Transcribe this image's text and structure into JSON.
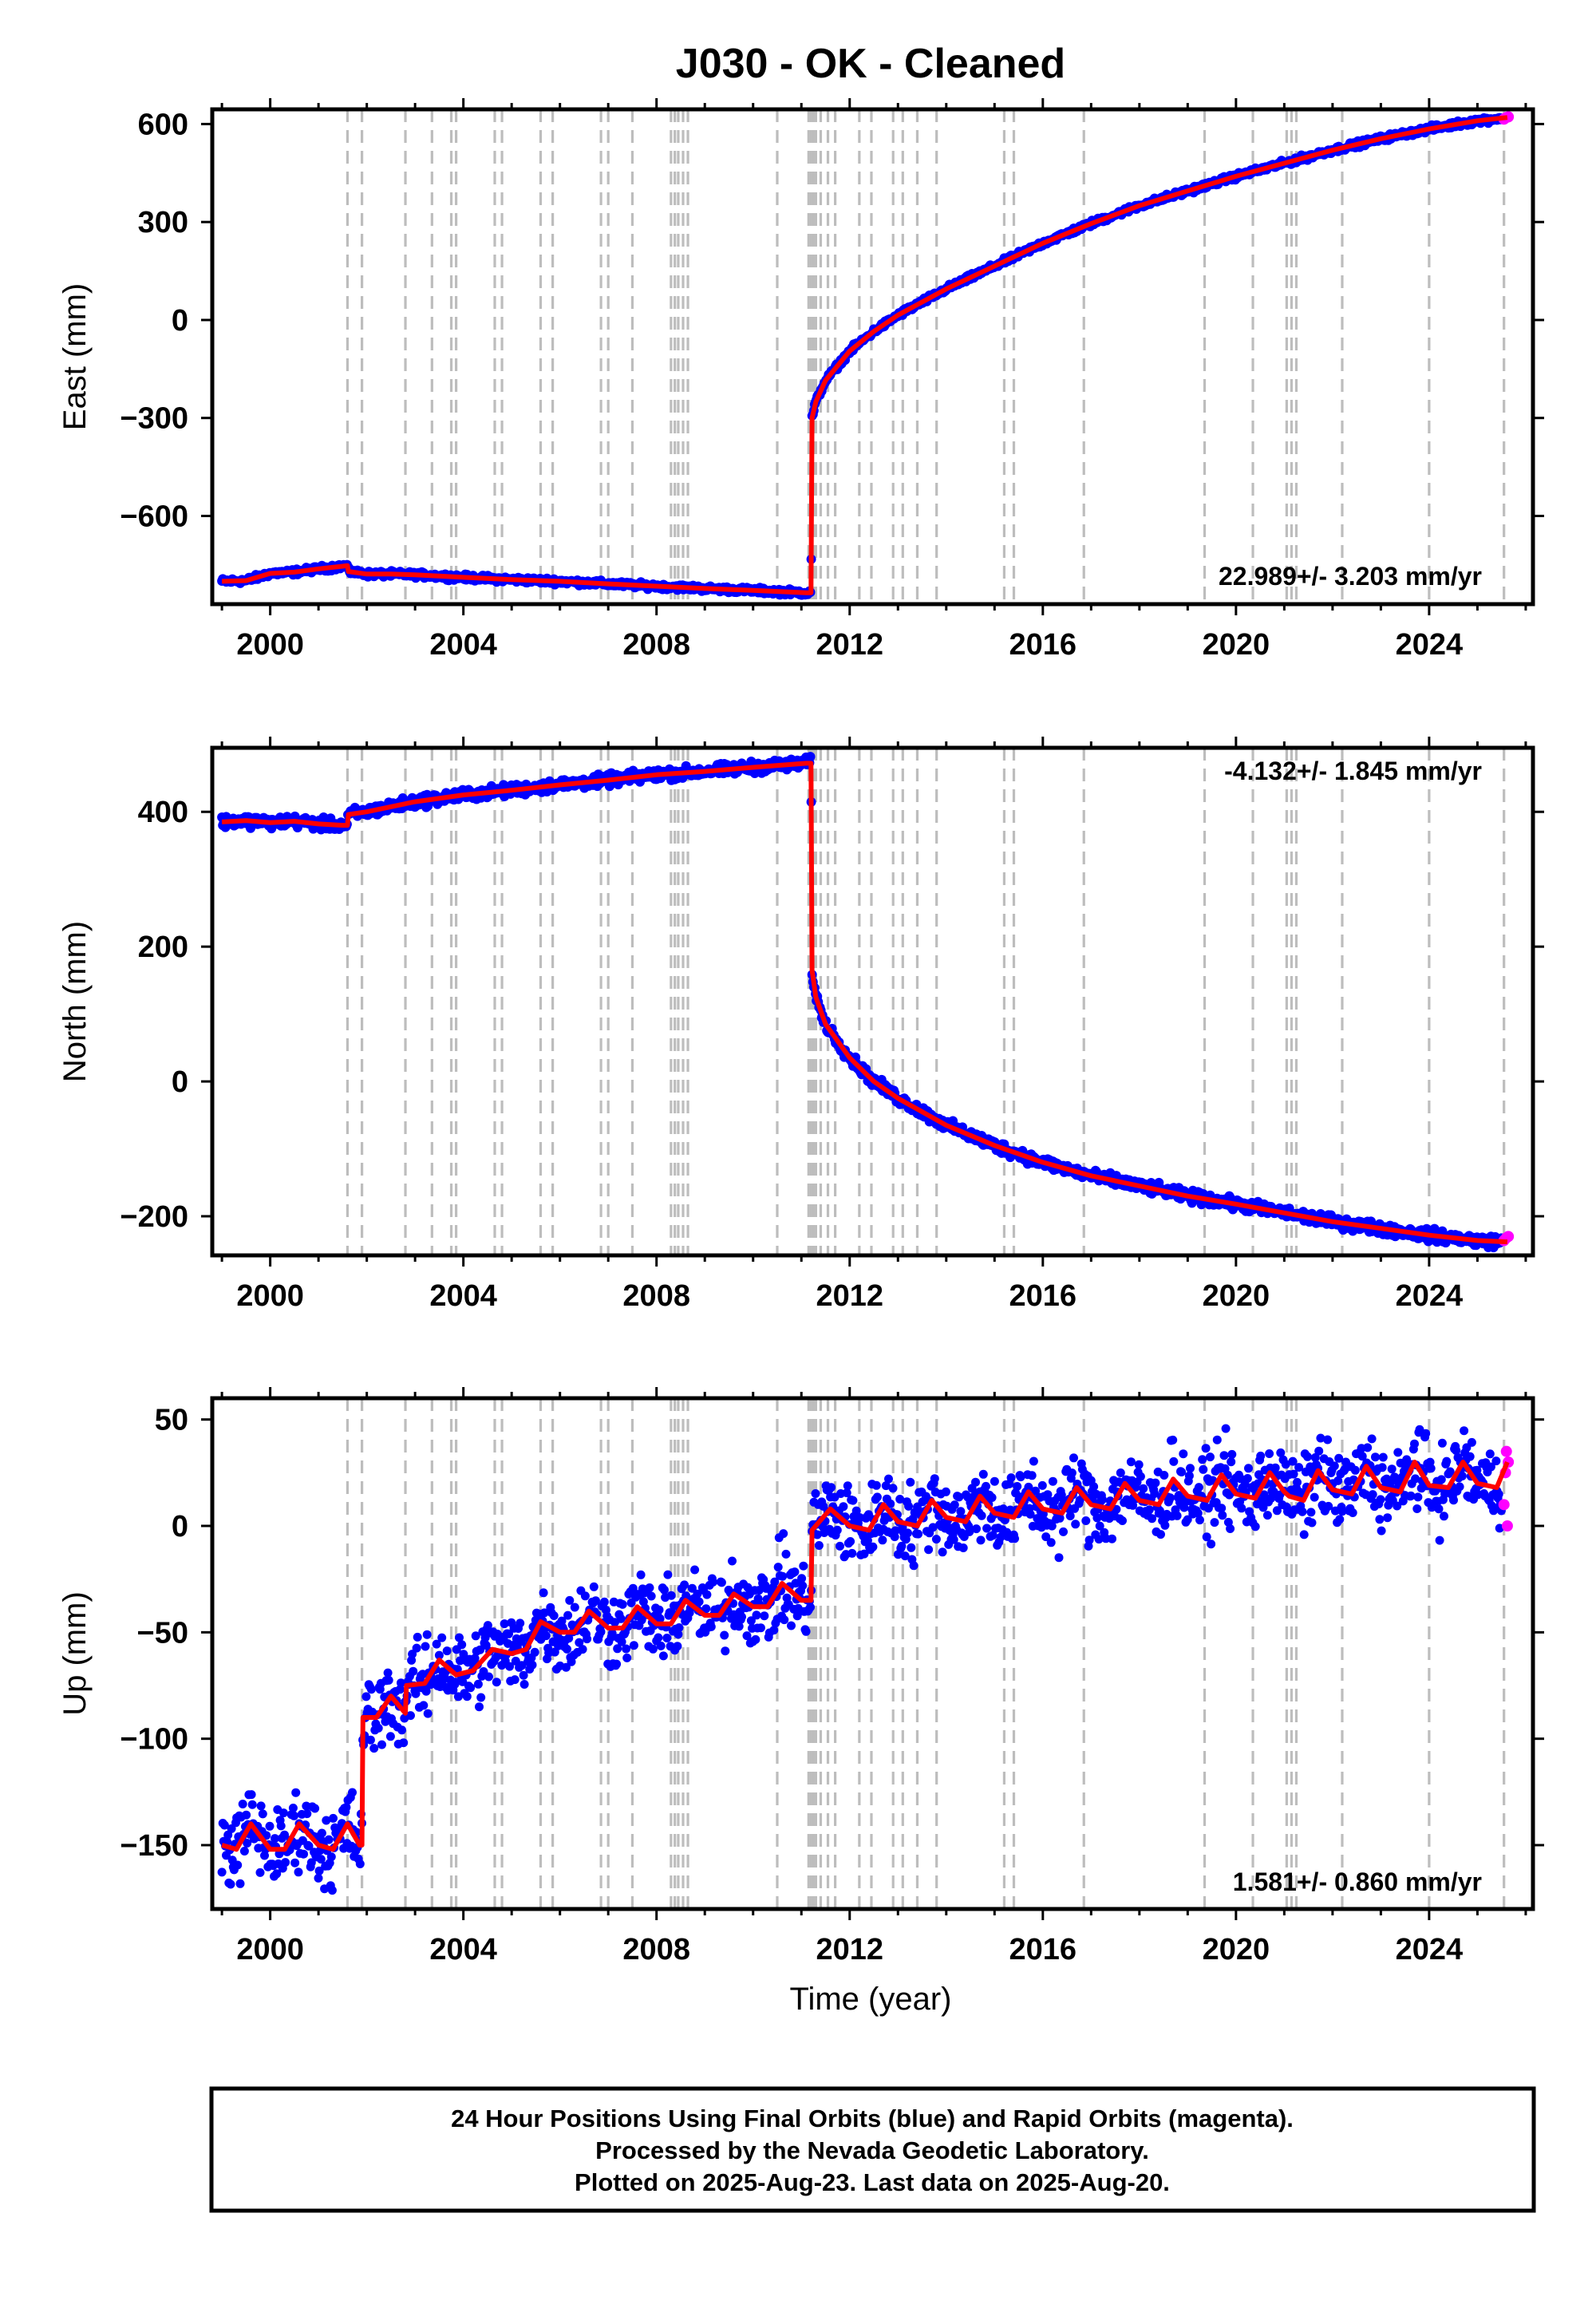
{
  "title": "J030  - OK - Cleaned",
  "x_axis_label": "Time (year)",
  "footer": {
    "line1": "24 Hour Positions Using Final Orbits (blue) and Rapid Orbits (magenta).",
    "line2": "Processed by the Nevada Geodetic Laboratory.",
    "line3": "Plotted on 2025-Aug-23. Last data on 2025-Aug-20."
  },
  "colors": {
    "final": "#0000ff",
    "rapid": "#ff00ff",
    "model": "#ff0000",
    "event_line": "#bdbdbd"
  },
  "chart_data": [
    {
      "type": "scatter",
      "id": "east",
      "ylabel": "East (mm)",
      "rate_label": "22.989+/- 3.203 mm/yr",
      "xlim": [
        1998.8,
        2026.15
      ],
      "ylim": [
        -870,
        645
      ],
      "xticks": [
        2000,
        2004,
        2008,
        2012,
        2016,
        2020,
        2024
      ],
      "yticks": [
        -600,
        -300,
        0,
        300,
        600
      ],
      "event_years": [
        2001.6,
        2001.9,
        2002.8,
        2003.35,
        2003.75,
        2003.85,
        2004.65,
        2004.8,
        2005.6,
        2005.85,
        2006.85,
        2007.0,
        2007.5,
        2008.3,
        2008.38,
        2008.45,
        2008.55,
        2008.65,
        2010.5,
        2011.15,
        2011.2,
        2011.25,
        2011.3,
        2011.4,
        2011.55,
        2011.7,
        2012.2,
        2012.45,
        2012.9,
        2013.1,
        2013.4,
        2013.8,
        2015.2,
        2015.4,
        2016.85,
        2019.35,
        2020.35,
        2021.05,
        2021.15,
        2021.25,
        2022.2,
        2024.0,
        2025.55
      ],
      "series": [
        {
          "name": "model",
          "points": [
            [
              1999.0,
              -800
            ],
            [
              1999.5,
              -798
            ],
            [
              2000.0,
              -776
            ],
            [
              2000.5,
              -772
            ],
            [
              2001.0,
              -762
            ],
            [
              2001.5,
              -754
            ],
            [
              2001.6,
              -752
            ],
            [
              2001.62,
              -770
            ],
            [
              2002.0,
              -778
            ],
            [
              2002.5,
              -778
            ],
            [
              2003.0,
              -780
            ],
            [
              2004.0,
              -788
            ],
            [
              2005.0,
              -795
            ],
            [
              2006.0,
              -800
            ],
            [
              2007.0,
              -808
            ],
            [
              2008.0,
              -815
            ],
            [
              2009.0,
              -822
            ],
            [
              2010.0,
              -828
            ],
            [
              2011.1,
              -835
            ],
            [
              2011.2,
              -835
            ],
            [
              2011.22,
              -300
            ],
            [
              2011.3,
              -250
            ],
            [
              2011.5,
              -185
            ],
            [
              2012.0,
              -95
            ],
            [
              2012.5,
              -35
            ],
            [
              2013.0,
              15
            ],
            [
              2013.5,
              55
            ],
            [
              2014.0,
              95
            ],
            [
              2015.0,
              165
            ],
            [
              2016.0,
              235
            ],
            [
              2017.0,
              295
            ],
            [
              2018.0,
              350
            ],
            [
              2019.0,
              395
            ],
            [
              2020.0,
              440
            ],
            [
              2021.0,
              480
            ],
            [
              2022.0,
              520
            ],
            [
              2023.0,
              555
            ],
            [
              2024.0,
              585
            ],
            [
              2025.0,
              610
            ],
            [
              2025.62,
              620
            ]
          ]
        },
        {
          "name": "rapid",
          "points": [
            [
              2025.55,
              615
            ],
            [
              2025.6,
              620
            ],
            [
              2025.64,
              622
            ]
          ]
        }
      ]
    },
    {
      "type": "scatter",
      "id": "north",
      "ylabel": "North (mm)",
      "rate_label": "-4.132+/- 1.845 mm/yr",
      "xlim": [
        1998.8,
        2026.15
      ],
      "ylim": [
        -258,
        495
      ],
      "xticks": [
        2000,
        2004,
        2008,
        2012,
        2016,
        2020,
        2024
      ],
      "yticks": [
        -200,
        0,
        200,
        400
      ],
      "event_years": [
        2001.6,
        2001.9,
        2002.8,
        2003.35,
        2003.75,
        2003.85,
        2004.65,
        2004.8,
        2005.6,
        2005.85,
        2006.85,
        2007.0,
        2007.5,
        2008.3,
        2008.38,
        2008.45,
        2008.55,
        2008.65,
        2010.5,
        2011.15,
        2011.2,
        2011.25,
        2011.3,
        2011.4,
        2011.55,
        2011.7,
        2012.2,
        2012.45,
        2012.9,
        2013.1,
        2013.4,
        2013.8,
        2015.2,
        2015.4,
        2016.85,
        2019.35,
        2020.35,
        2021.05,
        2021.15,
        2021.25,
        2022.2,
        2024.0,
        2025.55
      ],
      "series": [
        {
          "name": "model",
          "points": [
            [
              1999.0,
              385
            ],
            [
              1999.5,
              387
            ],
            [
              2000.0,
              384
            ],
            [
              2000.5,
              386
            ],
            [
              2001.0,
              382
            ],
            [
              2001.5,
              380
            ],
            [
              2001.6,
              380
            ],
            [
              2001.62,
              396
            ],
            [
              2002.0,
              400
            ],
            [
              2003.0,
              415
            ],
            [
              2004.0,
              425
            ],
            [
              2005.0,
              432
            ],
            [
              2006.0,
              440
            ],
            [
              2007.0,
              447
            ],
            [
              2008.0,
              455
            ],
            [
              2009.0,
              460
            ],
            [
              2010.0,
              466
            ],
            [
              2011.1,
              472
            ],
            [
              2011.2,
              472
            ],
            [
              2011.22,
              165
            ],
            [
              2011.3,
              125
            ],
            [
              2011.5,
              85
            ],
            [
              2012.0,
              35
            ],
            [
              2012.5,
              0
            ],
            [
              2013.0,
              -25
            ],
            [
              2014.0,
              -65
            ],
            [
              2015.0,
              -95
            ],
            [
              2016.0,
              -120
            ],
            [
              2017.0,
              -140
            ],
            [
              2018.0,
              -155
            ],
            [
              2019.0,
              -170
            ],
            [
              2020.0,
              -182
            ],
            [
              2021.0,
              -195
            ],
            [
              2022.0,
              -208
            ],
            [
              2023.0,
              -218
            ],
            [
              2024.0,
              -228
            ],
            [
              2025.0,
              -236
            ],
            [
              2025.62,
              -238
            ]
          ]
        },
        {
          "name": "rapid",
          "points": [
            [
              2025.55,
              -236
            ],
            [
              2025.6,
              -232
            ],
            [
              2025.64,
              -230
            ]
          ]
        }
      ]
    },
    {
      "type": "scatter",
      "id": "up",
      "ylabel": "Up (mm)",
      "rate_label": "1.581+/- 0.860 mm/yr",
      "xlim": [
        1998.8,
        2026.15
      ],
      "ylim": [
        -180,
        60
      ],
      "xticks": [
        2000,
        2004,
        2008,
        2012,
        2016,
        2020,
        2024
      ],
      "yticks": [
        -150,
        -100,
        -50,
        0,
        50
      ],
      "event_years": [
        2001.6,
        2001.9,
        2002.8,
        2003.35,
        2003.75,
        2003.85,
        2004.65,
        2004.8,
        2005.6,
        2005.85,
        2006.85,
        2007.0,
        2007.5,
        2008.3,
        2008.38,
        2008.45,
        2008.55,
        2008.65,
        2010.5,
        2011.15,
        2011.2,
        2011.25,
        2011.3,
        2011.4,
        2011.55,
        2011.7,
        2012.2,
        2012.45,
        2012.9,
        2013.1,
        2013.4,
        2013.8,
        2015.2,
        2015.4,
        2016.85,
        2019.35,
        2020.35,
        2021.05,
        2021.15,
        2021.25,
        2022.2,
        2024.0,
        2025.55
      ],
      "series": [
        {
          "name": "model",
          "points": [
            [
              1999.0,
              -150
            ],
            [
              1999.3,
              -152
            ],
            [
              1999.6,
              -140
            ],
            [
              2000.0,
              -152
            ],
            [
              2000.3,
              -152
            ],
            [
              2000.6,
              -140
            ],
            [
              2001.0,
              -150
            ],
            [
              2001.3,
              -152
            ],
            [
              2001.6,
              -140
            ],
            [
              2001.85,
              -150
            ],
            [
              2001.9,
              -150
            ],
            [
              2001.92,
              -90
            ],
            [
              2002.2,
              -90
            ],
            [
              2002.5,
              -80
            ],
            [
              2002.8,
              -88
            ],
            [
              2002.82,
              -75
            ],
            [
              2003.2,
              -74
            ],
            [
              2003.5,
              -63
            ],
            [
              2003.85,
              -70
            ],
            [
              2004.2,
              -68
            ],
            [
              2004.6,
              -58
            ],
            [
              2005.0,
              -60
            ],
            [
              2005.3,
              -58
            ],
            [
              2005.6,
              -45
            ],
            [
              2006.0,
              -50
            ],
            [
              2006.3,
              -50
            ],
            [
              2006.6,
              -40
            ],
            [
              2007.0,
              -48
            ],
            [
              2007.3,
              -48
            ],
            [
              2007.6,
              -38
            ],
            [
              2008.0,
              -46
            ],
            [
              2008.3,
              -46
            ],
            [
              2008.6,
              -35
            ],
            [
              2009.0,
              -42
            ],
            [
              2009.3,
              -42
            ],
            [
              2009.6,
              -32
            ],
            [
              2010.0,
              -38
            ],
            [
              2010.3,
              -38
            ],
            [
              2010.6,
              -27
            ],
            [
              2011.0,
              -35
            ],
            [
              2011.2,
              -35
            ],
            [
              2011.22,
              -2
            ],
            [
              2011.6,
              8
            ],
            [
              2012.0,
              0
            ],
            [
              2012.4,
              -2
            ],
            [
              2012.7,
              10
            ],
            [
              2013.0,
              2
            ],
            [
              2013.4,
              0
            ],
            [
              2013.7,
              12
            ],
            [
              2014.0,
              4
            ],
            [
              2014.4,
              2
            ],
            [
              2014.7,
              14
            ],
            [
              2015.0,
              6
            ],
            [
              2015.4,
              4
            ],
            [
              2015.7,
              16
            ],
            [
              2016.0,
              8
            ],
            [
              2016.4,
              6
            ],
            [
              2016.7,
              18
            ],
            [
              2017.0,
              10
            ],
            [
              2017.4,
              8
            ],
            [
              2017.7,
              20
            ],
            [
              2018.0,
              12
            ],
            [
              2018.4,
              10
            ],
            [
              2018.7,
              22
            ],
            [
              2019.0,
              14
            ],
            [
              2019.4,
              12
            ],
            [
              2019.7,
              24
            ],
            [
              2020.0,
              15
            ],
            [
              2020.4,
              13
            ],
            [
              2020.7,
              25
            ],
            [
              2021.0,
              16
            ],
            [
              2021.1,
              14
            ],
            [
              2021.4,
              12
            ],
            [
              2021.7,
              26
            ],
            [
              2022.0,
              17
            ],
            [
              2022.4,
              15
            ],
            [
              2022.7,
              28
            ],
            [
              2023.0,
              18
            ],
            [
              2023.4,
              16
            ],
            [
              2023.7,
              30
            ],
            [
              2024.0,
              19
            ],
            [
              2024.4,
              18
            ],
            [
              2024.7,
              30
            ],
            [
              2025.0,
              20
            ],
            [
              2025.4,
              18
            ],
            [
              2025.62,
              30
            ]
          ]
        },
        {
          "name": "rapid",
          "points": [
            [
              2025.55,
              10
            ],
            [
              2025.58,
              25
            ],
            [
              2025.6,
              35
            ],
            [
              2025.62,
              0
            ],
            [
              2025.64,
              30
            ]
          ]
        }
      ]
    }
  ]
}
